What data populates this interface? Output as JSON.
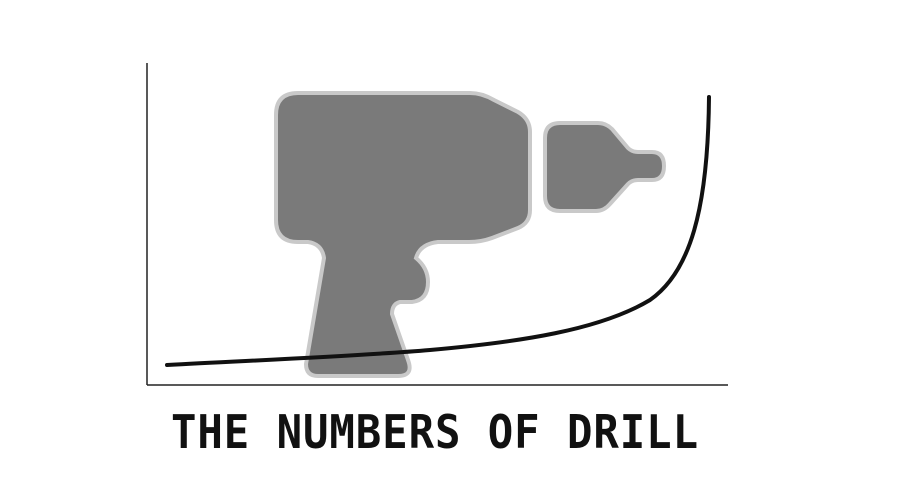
{
  "chart_data": {
    "type": "line",
    "title": "THE NUMBERS OF DRILL",
    "xlabel": "",
    "ylabel": "",
    "curve_shape": "exponential (slow rise, then sharp upturn at right)",
    "axes": [
      "left-vertical",
      "bottom-horizontal"
    ],
    "ticks": "none",
    "grid": false,
    "legend": "none",
    "illustration": "drill-icon"
  },
  "colors": {
    "drill_fill": "#7a7a7a",
    "drill_outline": "#c9c9c9",
    "curve": "#111111",
    "axes": "#222222",
    "title": "#111111"
  }
}
